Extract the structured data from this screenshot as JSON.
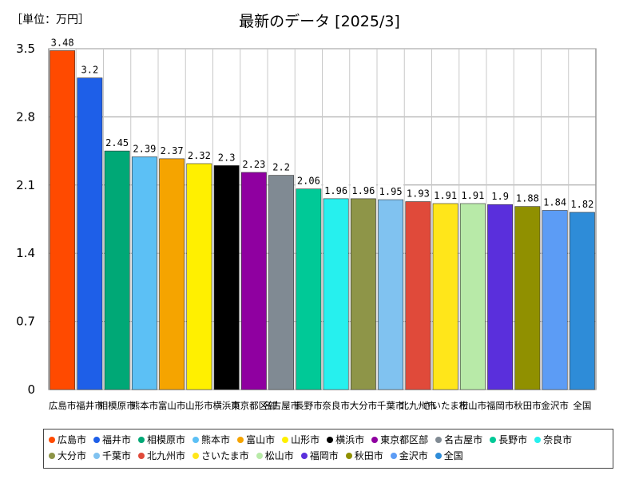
{
  "chart_data": {
    "type": "bar",
    "title": "最新のデータ [2025/3]",
    "unit_label": "［単位：万円］",
    "ylim": [
      0,
      3.5
    ],
    "yticks": [
      0,
      0.7,
      1.4,
      2.1,
      2.8,
      3.5
    ],
    "ytick_labels": [
      "0",
      "0.7",
      "1.4",
      "2.1",
      "2.8",
      "3.5"
    ],
    "grid": true,
    "legend_position": "bottom",
    "categories": [
      "広島市",
      "福井市",
      "相模原市",
      "熊本市",
      "富山市",
      "山形市",
      "横浜市",
      "東京都区部",
      "名古屋市",
      "長野市",
      "奈良市",
      "大分市",
      "千葉市",
      "北九州市",
      "さいたま市",
      "松山市",
      "福岡市",
      "秋田市",
      "金沢市",
      "全国"
    ],
    "values": [
      3.48,
      3.2,
      2.45,
      2.39,
      2.37,
      2.32,
      2.3,
      2.23,
      2.2,
      2.06,
      1.96,
      1.96,
      1.95,
      1.93,
      1.91,
      1.91,
      1.9,
      1.88,
      1.84,
      1.82
    ],
    "value_labels": [
      "3.48",
      "3.2",
      "2.45",
      "2.39",
      "2.37",
      "2.32",
      "2.3",
      "2.23",
      "2.2",
      "2.06",
      "1.96",
      "1.96",
      "1.95",
      "1.93",
      "1.91",
      "1.91",
      "1.9",
      "1.88",
      "1.84",
      "1.82"
    ],
    "colors": [
      "#ff4a00",
      "#1e5fe8",
      "#00a876",
      "#5cc0f5",
      "#f5a400",
      "#fff000",
      "#000000",
      "#8f00a0",
      "#808a93",
      "#00c997",
      "#26f0ee",
      "#8e9548",
      "#80c2f0",
      "#e04a3a",
      "#ffe61a",
      "#b8eaa8",
      "#5a2fdc",
      "#909000",
      "#5c9cf5",
      "#2e8cd8"
    ]
  }
}
